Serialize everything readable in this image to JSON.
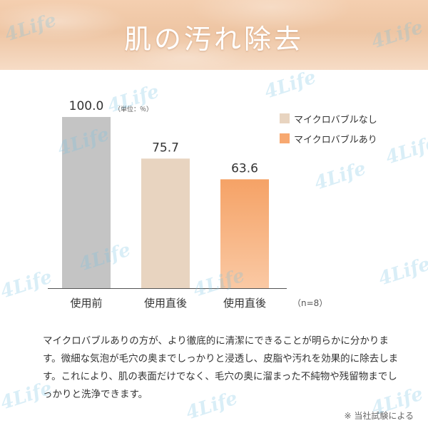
{
  "header": {
    "title": "肌の汚れ除去"
  },
  "unit_note": "（単位：％）",
  "sample_note": "（n=8）",
  "description": "マイクロバブルありの方が、より徹底的に清潔にできることが明らかに分かります。微細な気泡が毛穴の奥までしっかりと浸透し、皮脂や汚れを効果的に除去します。これにより、肌の表面だけでなく、毛穴の奥に溜まった不純物や残留物までしっかりと洗浄できます。",
  "footnote": "※ 当社試験による",
  "watermark_text": "4Life",
  "colors": {
    "before": "#c4c4c4",
    "no_bubble": "#e8d4c0",
    "bubble_top": "#f5a266",
    "bubble_bottom": "#fac9a4",
    "axis": "#555555"
  },
  "chart_data": {
    "type": "bar",
    "categories": [
      "使用前",
      "使用直後",
      "使用直後"
    ],
    "values": [
      100.0,
      75.7,
      63.6
    ],
    "value_labels": [
      "100.0",
      "75.7",
      "63.6"
    ],
    "bar_series": [
      "before",
      "no_bubble",
      "bubble"
    ],
    "legend": [
      {
        "label": "マイクロバブルなし",
        "color": "#e8d4c0"
      },
      {
        "label": "マイクロバブルあり",
        "color": "#f7a870"
      }
    ],
    "ylim": [
      0,
      100
    ],
    "grid": false,
    "legend_position": "top-right"
  }
}
